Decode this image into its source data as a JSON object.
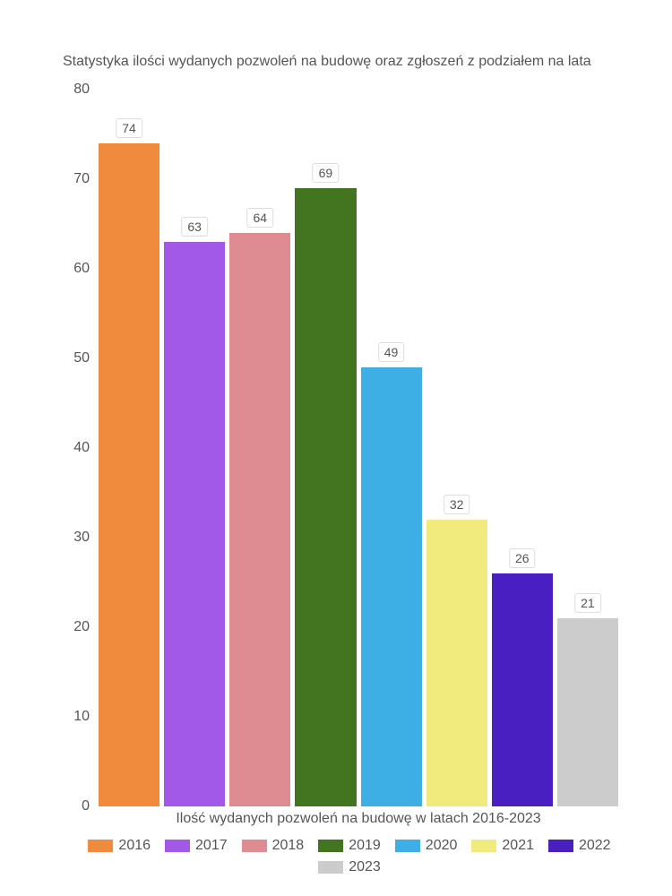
{
  "chart": {
    "type": "bar",
    "title": "Statystyka ilości wydanych pozwoleń na budowę oraz zgłoszeń z podziałem na lata",
    "title_fontsize": 16,
    "title_color": "#555555",
    "xlabel": "Ilość wydanych pozwoleń na budowę w latach 2016-2023",
    "label_fontsize": 16,
    "label_color": "#555555",
    "ylim": [
      0,
      80
    ],
    "ytick_step": 10,
    "yticks": [
      0,
      10,
      20,
      30,
      40,
      50,
      60,
      70,
      80
    ],
    "background_color": "#ffffff",
    "bar_gap": 5,
    "categories": [
      "2016",
      "2017",
      "2018",
      "2019",
      "2020",
      "2021",
      "2022",
      "2023"
    ],
    "values": [
      74,
      63,
      64,
      69,
      49,
      32,
      26,
      21
    ],
    "bar_colors": [
      "#f08a3c",
      "#a359e8",
      "#de8b92",
      "#437521",
      "#3eafe5",
      "#f1eb7d",
      "#4a1fc2",
      "#cccccc"
    ],
    "value_label_bg": "#ffffff",
    "value_label_border": "#dddddd",
    "value_label_fontsize": 14,
    "value_label_color": "#555555",
    "legend_swatch_width": 28,
    "legend_swatch_height": 14,
    "legend_fontsize": 16
  }
}
